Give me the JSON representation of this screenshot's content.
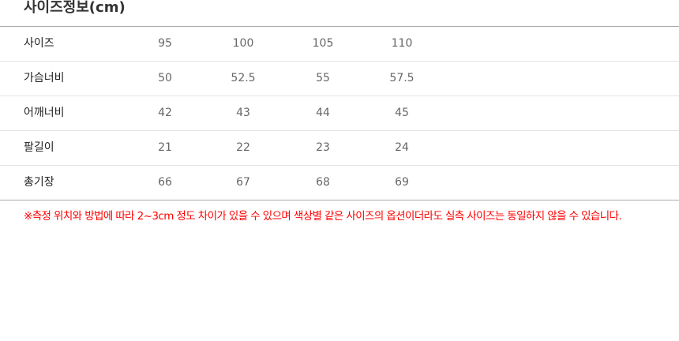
{
  "title": "사이즈정보(cm)",
  "rows": [
    {
      "label": "사이즈",
      "values": [
        "95",
        "100",
        "105",
        "110"
      ]
    },
    {
      "label": "가슴너비",
      "values": [
        "50",
        "52.5",
        "55",
        "57.5"
      ]
    },
    {
      "label": "어깨너비",
      "values": [
        "42",
        "43",
        "44",
        "45"
      ]
    },
    {
      "label": "팔길이",
      "values": [
        "21",
        "22",
        "23",
        "24"
      ]
    },
    {
      "label": "총기장",
      "values": [
        "66",
        "67",
        "68",
        "69"
      ]
    }
  ],
  "note": "※측정 위치와 방법에 따라 2~3cm 정도 차이가 있을 수 있으며 색상별 같은 사이즈의 옵션이더라도 실측 사이즈는 동일하지 않을 수 있습니다.",
  "colors": {
    "note": "#ff0000",
    "border": "#aaaaaa"
  }
}
